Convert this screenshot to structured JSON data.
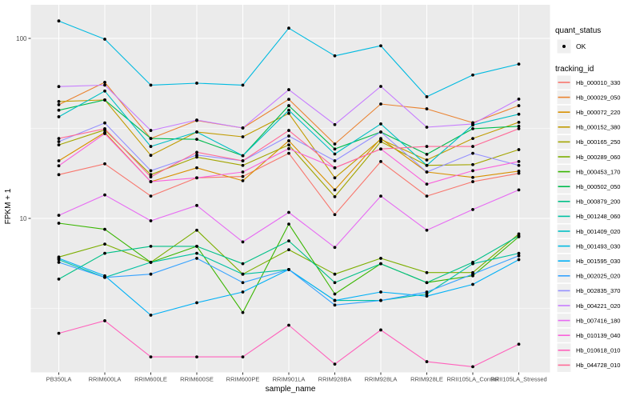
{
  "figure": {
    "y_axis_title": "FPKM + 1",
    "x_axis_title": "sample_name",
    "legend": {
      "quant_status_title": "quant_status",
      "quant_status_items": [
        {
          "label": "OK",
          "symbol": "point"
        }
      ],
      "tracking_title": "tracking_id"
    }
  },
  "colors": {
    "panel_bg": "#EBEBEB",
    "grid": "#FFFFFF",
    "legend_key_bg": "#EFEFEF",
    "point": "#000000",
    "tick_mark": "#333333",
    "tick_text": "#4D4D4D"
  },
  "chart_data": {
    "type": "line",
    "title": "",
    "xlabel": "sample_name",
    "ylabel": "FPKM + 1",
    "y_scale": "log10",
    "ylim": [
      1.4,
      150
    ],
    "y_major_breaks": [
      100,
      10
    ],
    "y_minor_breaks": [
      31.62,
      3.162
    ],
    "grid": true,
    "legend_position": "right",
    "quant_status": "OK",
    "point_style": "small black point at every sample",
    "categories": [
      "PB350LA",
      "RRIM600LA",
      "RRIM600LE",
      "RRIM600SE",
      "RRIM600PE",
      "RRIM901LA",
      "RRIM928BA",
      "RRIM928LA",
      "RRIM928LE",
      "RRII105LA_Control",
      "RRII105LA_Stressed"
    ],
    "series": [
      {
        "name": "Hb_000010_330",
        "color": "#F8766D",
        "values": [
          17.5,
          20.1,
          13.3,
          16.8,
          17.1,
          23.0,
          10.5,
          20.7,
          13.3,
          16.0,
          17.8
        ]
      },
      {
        "name": "Hb_000029_050",
        "color": "#EA8331",
        "values": [
          42.8,
          57.0,
          27.8,
          35.0,
          31.8,
          45.9,
          25.9,
          43.2,
          40.6,
          34.0,
          42.3
        ]
      },
      {
        "name": "Hb_000072_220",
        "color": "#D89000",
        "values": [
          20.9,
          30.0,
          16.0,
          19.1,
          16.2,
          27.0,
          14.4,
          27.8,
          18.1,
          16.9,
          18.3
        ]
      },
      {
        "name": "Hb_000152_380",
        "color": "#C09B00",
        "values": [
          44.6,
          45.5,
          22.4,
          30.2,
          28.4,
          38.3,
          16.8,
          27.5,
          21.1,
          27.8,
          34.2
        ]
      },
      {
        "name": "Hb_000165_250",
        "color": "#A3A500",
        "values": [
          25.6,
          31.0,
          17.5,
          21.9,
          19.7,
          25.6,
          13.2,
          26.7,
          19.7,
          19.9,
          24.1
        ]
      },
      {
        "name": "Hb_000289_060",
        "color": "#7CAE00",
        "values": [
          6.1,
          7.2,
          5.7,
          8.6,
          4.9,
          6.7,
          4.9,
          6.0,
          5.0,
          5.0,
          8.2
        ]
      },
      {
        "name": "Hb_000453_170",
        "color": "#39B600",
        "values": [
          9.4,
          8.7,
          5.7,
          7.0,
          3.0,
          9.3,
          3.8,
          5.6,
          4.4,
          4.8,
          7.9
        ]
      },
      {
        "name": "Hb_000502_050",
        "color": "#00BB4E",
        "values": [
          39.9,
          45.5,
          27.8,
          27.5,
          22.3,
          42.3,
          24.3,
          30.2,
          22.7,
          31.5,
          32.5
        ]
      },
      {
        "name": "Hb_000879_200",
        "color": "#00C087",
        "values": [
          4.6,
          6.4,
          7.0,
          7.0,
          5.6,
          7.5,
          4.4,
          5.6,
          4.4,
          5.7,
          8.0
        ]
      },
      {
        "name": "Hb_001248_060",
        "color": "#00C1A3",
        "values": [
          5.9,
          4.7,
          5.7,
          6.4,
          4.9,
          5.2,
          3.5,
          3.5,
          3.8,
          5.6,
          6.4
        ]
      },
      {
        "name": "Hb_001409_020",
        "color": "#00BFC4",
        "values": [
          36.7,
          51.0,
          25.1,
          30.2,
          22.3,
          39.9,
          22.8,
          33.5,
          19.7,
          33.0,
          37.9
        ]
      },
      {
        "name": "Hb_001493_030",
        "color": "#00BAE0",
        "values": [
          125.0,
          99.0,
          55.0,
          56.4,
          55.0,
          114.0,
          80.0,
          91.0,
          47.4,
          62.6,
          72.0
        ]
      },
      {
        "name": "Hb_001595_030",
        "color": "#00B0F6",
        "values": [
          6.0,
          4.8,
          2.9,
          3.4,
          3.9,
          5.2,
          3.5,
          3.9,
          3.7,
          4.3,
          5.9
        ]
      },
      {
        "name": "Hb_002025_020",
        "color": "#35A2FF",
        "values": [
          5.7,
          4.7,
          4.9,
          6.0,
          4.4,
          5.2,
          3.3,
          3.5,
          3.9,
          4.9,
          6.2
        ]
      },
      {
        "name": "Hb_002835_370",
        "color": "#9590FF",
        "values": [
          26.7,
          33.9,
          18.4,
          22.5,
          20.9,
          28.7,
          20.9,
          30.2,
          18.1,
          23.0,
          19.7
        ]
      },
      {
        "name": "Hb_004221_020",
        "color": "#C77CFF",
        "values": [
          54.0,
          55.0,
          30.8,
          35.2,
          31.8,
          51.9,
          33.2,
          54.1,
          32.1,
          33.5,
          46.0
        ]
      },
      {
        "name": "Hb_007416_180",
        "color": "#E76BF3",
        "values": [
          10.4,
          13.5,
          9.7,
          11.8,
          7.4,
          10.8,
          6.9,
          13.3,
          8.6,
          11.2,
          14.4
        ]
      },
      {
        "name": "Hb_010139_040",
        "color": "#FA62DB",
        "values": [
          19.6,
          29.6,
          16.0,
          16.8,
          18.1,
          24.4,
          19.1,
          24.3,
          15.5,
          18.4,
          20.7
        ]
      },
      {
        "name": "Hb_010618_010",
        "color": "#FF62BC",
        "values": [
          2.3,
          2.7,
          1.7,
          1.7,
          1.7,
          2.55,
          1.55,
          2.4,
          1.6,
          1.5,
          2.0
        ]
      },
      {
        "name": "Hb_044728_010",
        "color": "#FF6A98",
        "values": [
          27.8,
          31.5,
          17.0,
          23.3,
          20.9,
          30.8,
          19.1,
          24.3,
          25.1,
          25.1,
          31.5
        ]
      }
    ]
  }
}
